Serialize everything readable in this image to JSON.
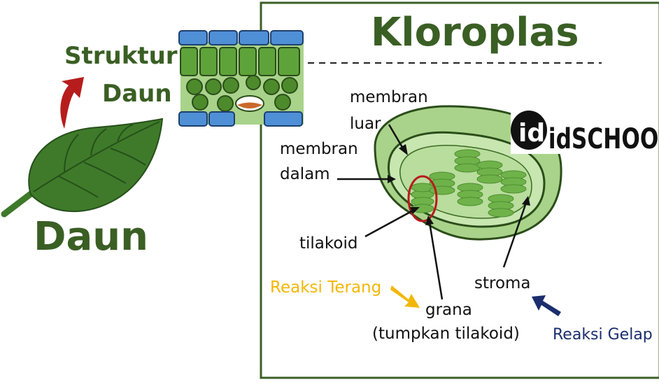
{
  "left": {
    "struktur": "Struktur",
    "daun_small": "Daun",
    "daun_big": "Daun"
  },
  "panel": {
    "title": "Kloroplas"
  },
  "watermark": {
    "text": "idSCHOOL"
  },
  "labels": {
    "membran_luar_1": "membran",
    "membran_luar_2": "luar",
    "membran_dalam_1": "membran",
    "membran_dalam_2": "dalam",
    "tilakoid": "tilakoid",
    "stroma": "stroma",
    "grana": "grana",
    "grana_sub": "(tumpkan tilakoid)",
    "reaksi_terang": "Reaksi Terang",
    "reaksi_gelap": "Reaksi Gelap"
  },
  "colors": {
    "dark_green": "#3a5f24",
    "leaf_green": "#3f7a2a",
    "light_green": "#a9d38a",
    "mid_green": "#7bbf4e",
    "cell_blue": "#4f8fd6",
    "arrow_red": "#b71c1c",
    "reaksi_terang": "#f2b705",
    "reaksi_gelap": "#1a2e6e"
  }
}
